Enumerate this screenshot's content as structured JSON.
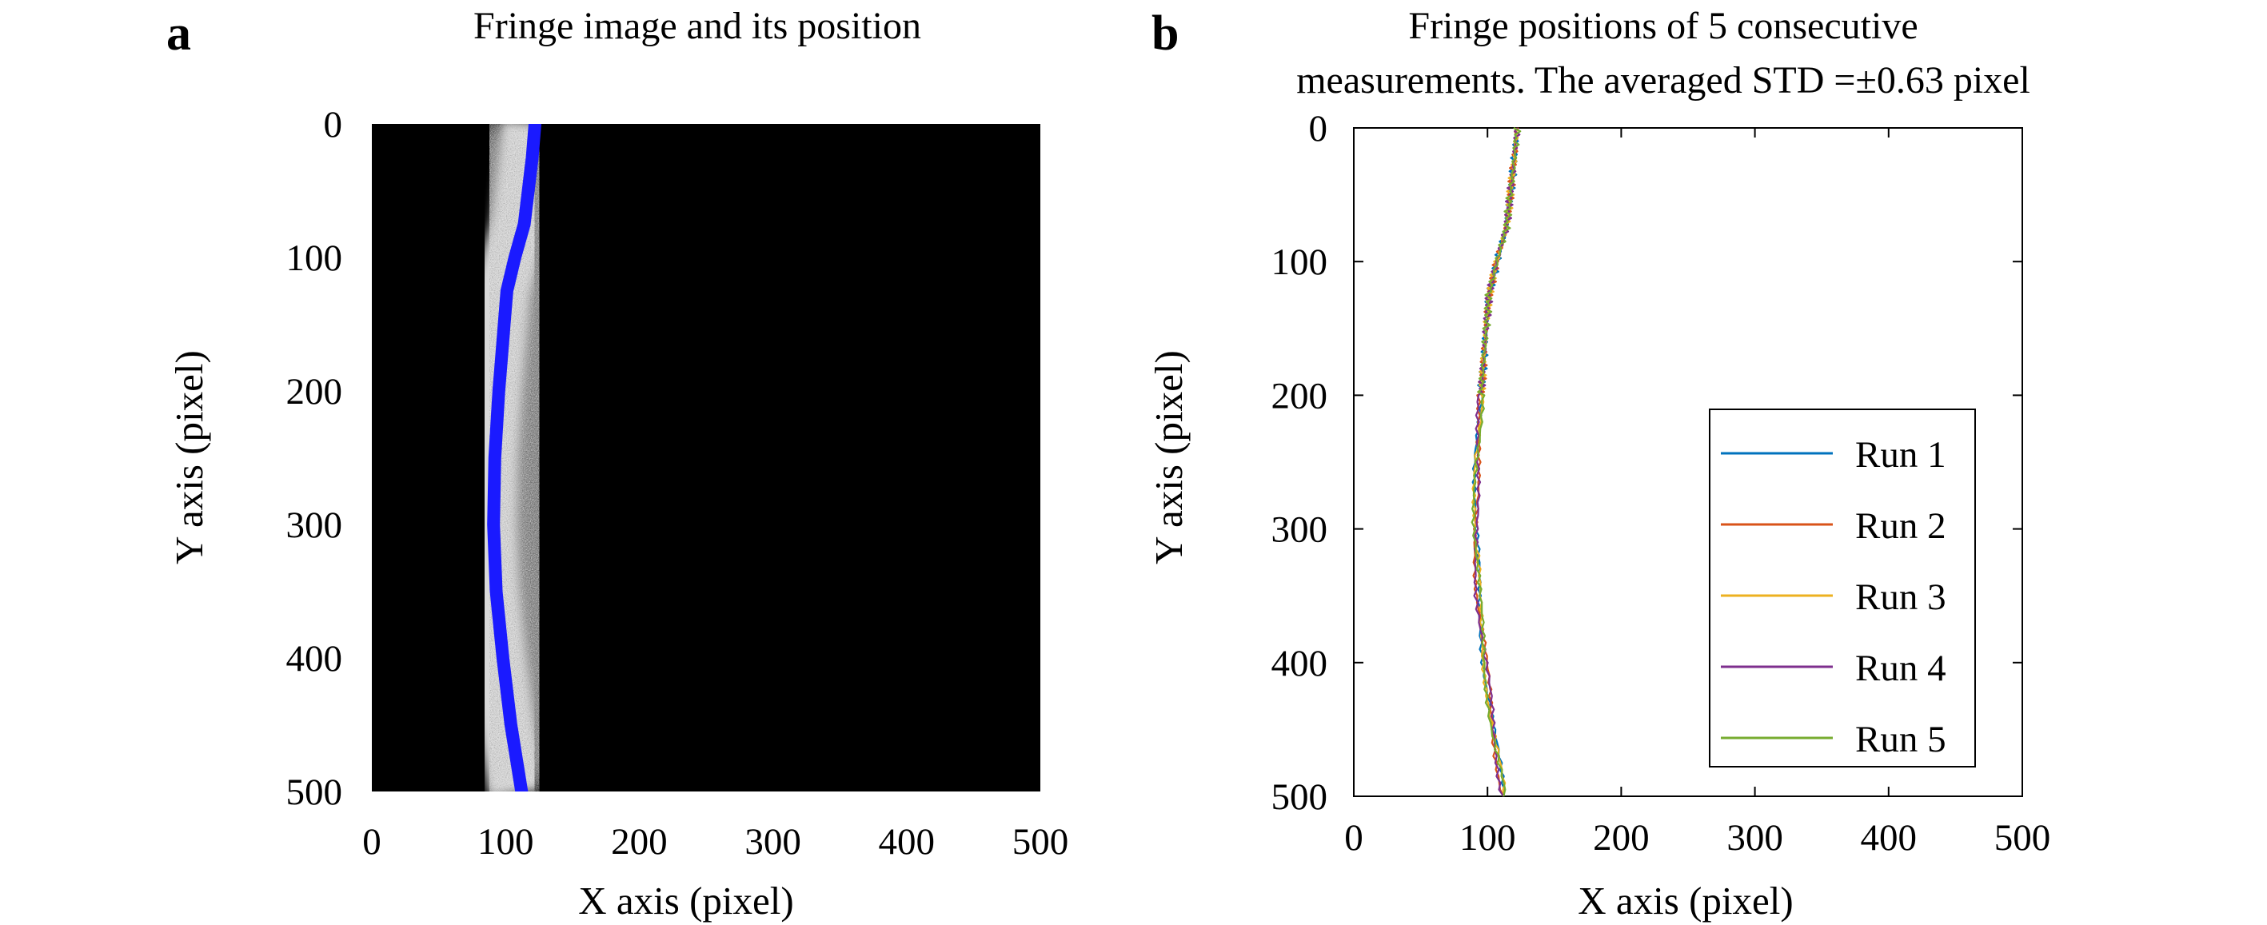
{
  "panels": [
    {
      "letter": "a",
      "title_lines": [
        "Fringe image and its position"
      ],
      "xlabel": "X axis (pixel)",
      "ylabel": "Y axis (pixel)"
    },
    {
      "letter": "b",
      "title_lines": [
        "Fringe positions of 5 consecutive",
        "measurements. The averaged STD =±0.63 pixel"
      ],
      "xlabel": "X axis (pixel)",
      "ylabel": "Y axis (pixel)"
    }
  ],
  "chart_data": [
    {
      "type": "image",
      "panel": "a",
      "title": "Fringe image and its position",
      "xlabel": "X axis (pixel)",
      "ylabel": "Y axis (pixel)",
      "xlim": [
        0,
        500
      ],
      "ylim": [
        0,
        500
      ],
      "y_reversed": true,
      "x_ticks": [
        0,
        100,
        200,
        300,
        400,
        500
      ],
      "y_ticks": [
        0,
        100,
        200,
        300,
        400,
        500
      ],
      "background": "#000000",
      "fringe_color": "#ffffff",
      "overlay_color": "#1a1aff",
      "fringe_position": {
        "y": [
          0,
          25,
          50,
          75,
          100,
          125,
          150,
          175,
          200,
          250,
          300,
          350,
          400,
          450,
          500
        ],
        "x": [
          122,
          120,
          117,
          114,
          107,
          101,
          99,
          97,
          95,
          92,
          91,
          93,
          98,
          104,
          112
        ]
      }
    },
    {
      "type": "line",
      "panel": "b",
      "title": "Fringe positions of 5 consecutive measurements. The averaged STD =±0.63 pixel",
      "xlabel": "X axis (pixel)",
      "ylabel": "Y axis (pixel)",
      "xlim": [
        0,
        500
      ],
      "ylim": [
        0,
        500
      ],
      "y_reversed": true,
      "x_ticks": [
        0,
        100,
        200,
        300,
        400,
        500
      ],
      "y_ticks": [
        0,
        100,
        200,
        300,
        400,
        500
      ],
      "legend_position": "lower-right",
      "y": [
        0,
        25,
        50,
        75,
        100,
        125,
        150,
        175,
        200,
        250,
        300,
        350,
        400,
        450,
        500
      ],
      "series": [
        {
          "name": "Run 1",
          "color": "#0072bd",
          "x": [
            122,
            120,
            117,
            114,
            107,
            101,
            99,
            97,
            95,
            92,
            91,
            93,
            98,
            104,
            112
          ]
        },
        {
          "name": "Run 2",
          "color": "#d95319",
          "x": [
            122,
            120,
            117,
            114,
            107,
            101,
            99,
            97,
            95,
            92,
            91,
            93,
            98,
            104,
            112
          ]
        },
        {
          "name": "Run 3",
          "color": "#edb120",
          "x": [
            122,
            120,
            117,
            114,
            107,
            101,
            99,
            97,
            95,
            92,
            91,
            93,
            98,
            104,
            112
          ]
        },
        {
          "name": "Run 4",
          "color": "#7e2f8e",
          "x": [
            122,
            120,
            117,
            114,
            107,
            101,
            99,
            97,
            95,
            92,
            91,
            93,
            98,
            104,
            112
          ]
        },
        {
          "name": "Run 5",
          "color": "#77ac30",
          "x": [
            122,
            120,
            117,
            114,
            107,
            101,
            99,
            97,
            95,
            92,
            91,
            93,
            98,
            104,
            112
          ]
        }
      ]
    }
  ]
}
